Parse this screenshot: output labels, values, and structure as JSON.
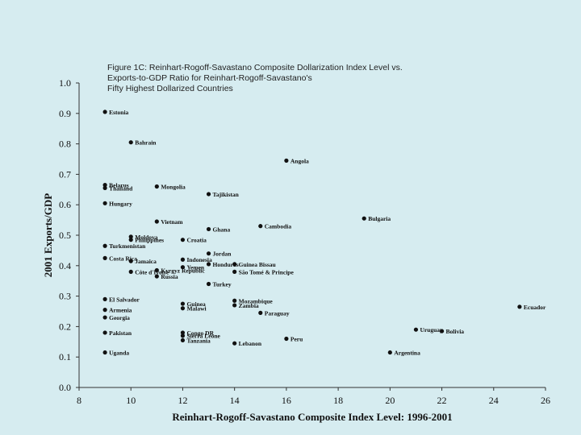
{
  "chart_data": {
    "type": "scatter",
    "title_lines": [
      "Figure 1C: Reinhart-Rogoff-Savastano Composite Dollarization Index Level vs.",
      "Exports-to-GDP Ratio for Reinhart-Rogoff-Savastano's",
      "Fifty Highest Dollarized Countries"
    ],
    "xlabel": "Reinhart-Rogoff-Savastano Composite Index Level: 1996-2001",
    "ylabel": "2001 Exports/GDP",
    "xlim": [
      8,
      26
    ],
    "ylim": [
      0.0,
      1.0
    ],
    "x_ticks": [
      8,
      10,
      12,
      14,
      16,
      18,
      20,
      22,
      24,
      26
    ],
    "y_ticks": [
      "0.0",
      "0.1",
      "0.2",
      "0.3",
      "0.4",
      "0.5",
      "0.6",
      "0.7",
      "0.8",
      "0.9",
      "1.0"
    ],
    "grid": false,
    "points": [
      {
        "label": "Estonia",
        "x": 9,
        "y": 0.905
      },
      {
        "label": "Bahrain",
        "x": 10,
        "y": 0.805
      },
      {
        "label": "Angola",
        "x": 16,
        "y": 0.745
      },
      {
        "label": "Belarus",
        "x": 9,
        "y": 0.665
      },
      {
        "label": "Thailand",
        "x": 9,
        "y": 0.655
      },
      {
        "label": "Mongolia",
        "x": 11,
        "y": 0.66
      },
      {
        "label": "Tajikistan",
        "x": 13,
        "y": 0.635
      },
      {
        "label": "Hungary",
        "x": 9,
        "y": 0.605
      },
      {
        "label": "Bulgaria",
        "x": 19,
        "y": 0.555
      },
      {
        "label": "Vietnam",
        "x": 11,
        "y": 0.545
      },
      {
        "label": "Cambodia",
        "x": 15,
        "y": 0.53
      },
      {
        "label": "Ghana",
        "x": 13,
        "y": 0.52
      },
      {
        "label": "Moldova",
        "x": 10,
        "y": 0.495
      },
      {
        "label": "Philippines",
        "x": 10,
        "y": 0.485
      },
      {
        "label": "Croatia",
        "x": 12,
        "y": 0.485
      },
      {
        "label": "Turkmenistan",
        "x": 9,
        "y": 0.465
      },
      {
        "label": "Indonesia",
        "x": 12,
        "y": 0.42
      },
      {
        "label": "Jordan",
        "x": 13,
        "y": 0.44
      },
      {
        "label": "Costa Rica",
        "x": 9,
        "y": 0.425
      },
      {
        "label": "Jamaica",
        "x": 10,
        "y": 0.415
      },
      {
        "label": "Guinea Bissau",
        "x": 14,
        "y": 0.405
      },
      {
        "label": "Honduras",
        "x": 13,
        "y": 0.405
      },
      {
        "label": "Yemen",
        "x": 12,
        "y": 0.395
      },
      {
        "label": "Kyrgyz Republic",
        "x": 11,
        "y": 0.385
      },
      {
        "label": "Côte d'Ivoire",
        "x": 10,
        "y": 0.38
      },
      {
        "label": "São Tomé & Principe",
        "x": 14,
        "y": 0.38
      },
      {
        "label": "Russia",
        "x": 11,
        "y": 0.365
      },
      {
        "label": "Turkey",
        "x": 13,
        "y": 0.34
      },
      {
        "label": "El Salvador",
        "x": 9,
        "y": 0.29
      },
      {
        "label": "Guinea",
        "x": 12,
        "y": 0.275
      },
      {
        "label": "Mozambique",
        "x": 14,
        "y": 0.285
      },
      {
        "label": "Armenia",
        "x": 9,
        "y": 0.255
      },
      {
        "label": "Malawi",
        "x": 12,
        "y": 0.26
      },
      {
        "label": "Zambia",
        "x": 14,
        "y": 0.27
      },
      {
        "label": "Ecuador",
        "x": 25,
        "y": 0.265
      },
      {
        "label": "Paraguay",
        "x": 15,
        "y": 0.245
      },
      {
        "label": "Georgia",
        "x": 9,
        "y": 0.23
      },
      {
        "label": "Congo DR",
        "x": 12,
        "y": 0.18
      },
      {
        "label": "Uruguay",
        "x": 21,
        "y": 0.19
      },
      {
        "label": "Pakistan",
        "x": 9,
        "y": 0.18
      },
      {
        "label": "Bolivia",
        "x": 22,
        "y": 0.185
      },
      {
        "label": "Sierra Leone",
        "x": 12,
        "y": 0.17
      },
      {
        "label": "Peru",
        "x": 16,
        "y": 0.16
      },
      {
        "label": "Tanzania",
        "x": 12,
        "y": 0.155
      },
      {
        "label": "Lebanon",
        "x": 14,
        "y": 0.145
      },
      {
        "label": "Uganda",
        "x": 9,
        "y": 0.115
      },
      {
        "label": "Argentina",
        "x": 20,
        "y": 0.115
      }
    ]
  }
}
